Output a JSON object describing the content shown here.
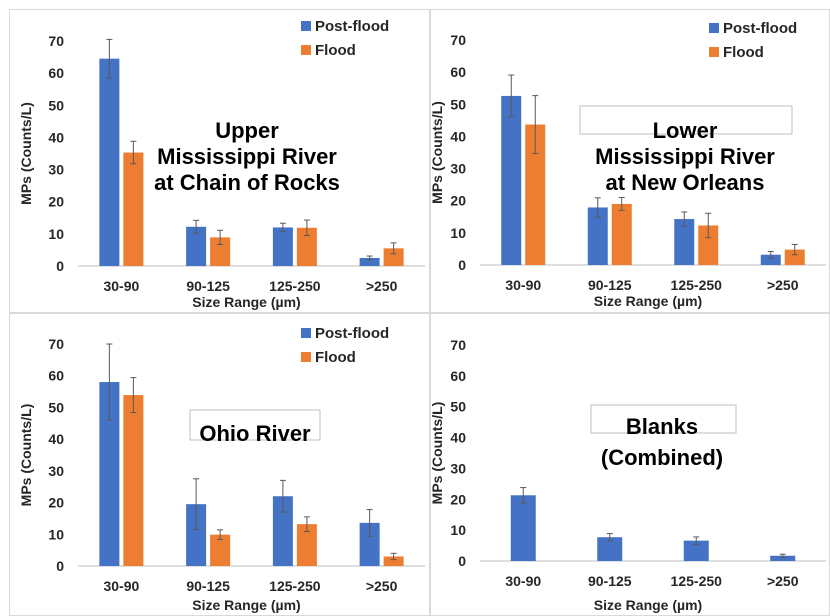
{
  "colors": {
    "post_flood": "#4472c4",
    "flood": "#ed7d31",
    "error_bar": "#595959",
    "axis": "#bfbfbf"
  },
  "chart_data": [
    {
      "type": "bar",
      "title": [
        "Upper",
        "Mississippi River",
        "at Chain of Rocks"
      ],
      "title_boxed": false,
      "categories": [
        "30-90",
        "90-125",
        "125-250",
        ">250"
      ],
      "series": [
        {
          "name": "Post-flood",
          "values": [
            64.5,
            12.2,
            12.0,
            2.5
          ],
          "errors": [
            6.0,
            2.0,
            1.3,
            0.6
          ]
        },
        {
          "name": "Flood",
          "values": [
            35.3,
            8.9,
            11.9,
            5.5
          ],
          "errors": [
            3.5,
            2.2,
            2.4,
            1.7
          ]
        }
      ],
      "ylabel": "MPs (Counts/L)",
      "xlabel": "Size Range (µm)",
      "ylim": [
        0,
        70
      ],
      "yticks": [
        0,
        10,
        20,
        30,
        40,
        50,
        60,
        70
      ],
      "legend": "top-right"
    },
    {
      "type": "bar",
      "title": [
        "Lower",
        "Mississippi River",
        "at New Orleans"
      ],
      "title_boxed": true,
      "categories": [
        "30-90",
        "90-125",
        "125-250",
        ">250"
      ],
      "series": [
        {
          "name": "Post-flood",
          "values": [
            52.6,
            17.9,
            14.3,
            3.2
          ],
          "errors": [
            6.5,
            3.0,
            2.2,
            1.0
          ]
        },
        {
          "name": "Flood",
          "values": [
            43.7,
            19.0,
            12.3,
            4.8
          ],
          "errors": [
            9.0,
            2.0,
            3.8,
            1.6
          ]
        }
      ],
      "ylabel": "MPs (Counts/L)",
      "xlabel": "Size Range (µm)",
      "ylim": [
        0,
        70
      ],
      "yticks": [
        0,
        10,
        20,
        30,
        40,
        50,
        60,
        70
      ],
      "legend": "top-right"
    },
    {
      "type": "bar",
      "title": [
        "Ohio River"
      ],
      "title_boxed": true,
      "categories": [
        "30-90",
        "90-125",
        "125-250",
        ">250"
      ],
      "series": [
        {
          "name": "Post-flood",
          "values": [
            58.0,
            19.5,
            22.0,
            13.6
          ],
          "errors": [
            12.0,
            8.0,
            5.0,
            4.2
          ]
        },
        {
          "name": "Flood",
          "values": [
            53.9,
            9.9,
            13.2,
            3.0
          ],
          "errors": [
            5.5,
            1.5,
            2.3,
            1.0
          ]
        }
      ],
      "ylabel": "MPs (Counts/L)",
      "xlabel": "Size Range (µm)",
      "ylim": [
        0,
        70
      ],
      "yticks": [
        0,
        10,
        20,
        30,
        40,
        50,
        60,
        70
      ],
      "legend": "top-right"
    },
    {
      "type": "bar",
      "title": [
        "Blanks",
        "(Combined)"
      ],
      "title_boxed": true,
      "categories": [
        "30-90",
        "90-125",
        "125-250",
        ">250"
      ],
      "series": [
        {
          "name": "",
          "values": [
            21.3,
            7.7,
            6.6,
            1.7
          ],
          "errors": [
            2.5,
            1.2,
            1.2,
            0.5
          ]
        }
      ],
      "ylabel": "MPs (Counts/L)",
      "xlabel": "Size Range (µm)",
      "ylim": [
        0,
        70
      ],
      "yticks": [
        0,
        10,
        20,
        30,
        40,
        50,
        60,
        70
      ],
      "legend": "none"
    }
  ]
}
